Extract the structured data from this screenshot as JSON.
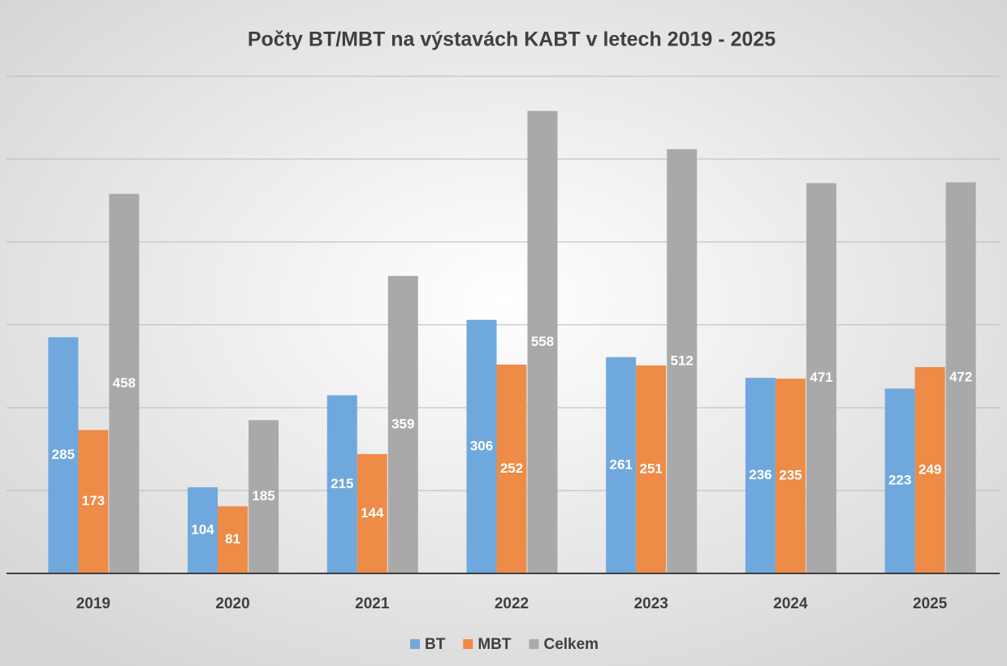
{
  "chart_data": {
    "type": "bar",
    "title": "Počty BT/MBT na výstavách KABT v letech 2019 - 2025",
    "categories": [
      "2019",
      "2020",
      "2021",
      "2022",
      "2023",
      "2024",
      "2025"
    ],
    "series": [
      {
        "name": "BT",
        "color": "#6fa8dc",
        "values": [
          285,
          104,
          215,
          306,
          261,
          236,
          223
        ]
      },
      {
        "name": "MBT",
        "color": "#ed8b47",
        "values": [
          173,
          81,
          144,
          252,
          251,
          235,
          249
        ]
      },
      {
        "name": "Celkem",
        "color": "#a9a9a9",
        "values": [
          458,
          185,
          359,
          558,
          512,
          471,
          472
        ]
      }
    ],
    "ylim": [
      0,
      690
    ],
    "yticks": [
      0,
      100,
      200,
      300,
      400,
      500,
      600
    ],
    "grid": true,
    "legend": "bottom"
  }
}
